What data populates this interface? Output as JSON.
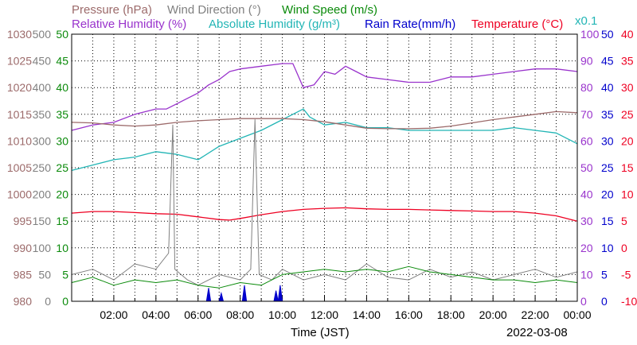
{
  "chart_data": {
    "type": "line",
    "date_label": "2022-03-08",
    "x_axis": {
      "label": "Time (JST)",
      "range_hours": [
        0,
        24
      ],
      "tick_labels": [
        "02:00",
        "04:00",
        "06:00",
        "08:00",
        "10:00",
        "12:00",
        "14:00",
        "16:00",
        "18:00",
        "20:00",
        "22:00",
        "00:00"
      ]
    },
    "grid": true,
    "colors": {
      "pressure": "#9c6a6a",
      "wind_direction": "#808080",
      "wind_speed": "#0a8a0a",
      "relative_humidity": "#9933cc",
      "absolute_humidity": "#22b5b5",
      "rain_rate": "#0000cc",
      "temperature": "#ee0022"
    },
    "legend": {
      "pressure": "Pressure (hPa)",
      "wind_direction": "Wind Direction (°)",
      "wind_speed": "Wind Speed (m/s)",
      "relative_humidity": "Relative Humidity (%)",
      "absolute_humidity": "Absolute Humidity (g/m³)",
      "rain_rate": "Rain Rate(mm/h)",
      "temperature": "Temperature (°C)",
      "scale_note": "x0.1"
    },
    "axes": {
      "pressure": {
        "range": [
          980,
          1030
        ],
        "ticks": [
          "1030",
          "1025",
          "1020",
          "1015",
          "1010",
          "1005",
          "1000",
          "995",
          "990",
          "985",
          "980"
        ]
      },
      "wind_direction": {
        "range": [
          0,
          500
        ],
        "ticks": [
          "500",
          "450",
          "400",
          "350",
          "300",
          "250",
          "200",
          "150",
          "100",
          "50",
          "0"
        ]
      },
      "wind_speed": {
        "range": [
          0,
          50
        ],
        "ticks": [
          "50",
          "45",
          "40",
          "35",
          "30",
          "25",
          "20",
          "15",
          "10",
          "5",
          "0"
        ]
      },
      "relative_humidity": {
        "range": [
          0,
          100
        ],
        "ticks": [
          "100",
          "90",
          "80",
          "70",
          "60",
          "50",
          "40",
          "30",
          "20",
          "10",
          "0"
        ]
      },
      "rain_rate": {
        "range": [
          0,
          50
        ],
        "ticks": [
          "50",
          "45",
          "40",
          "35",
          "30",
          "25",
          "20",
          "15",
          "10",
          "5",
          "0"
        ]
      },
      "temperature": {
        "range": [
          -10,
          40
        ],
        "ticks": [
          "40",
          "35",
          "30",
          "25",
          "20",
          "15",
          "10",
          "5",
          "0",
          "-5",
          "-10"
        ]
      }
    },
    "series": [
      {
        "name": "Relative Humidity (%)",
        "axis": "relative_humidity",
        "points": [
          [
            0,
            64
          ],
          [
            1,
            66
          ],
          [
            2,
            67
          ],
          [
            3,
            70
          ],
          [
            4,
            72
          ],
          [
            4.5,
            72
          ],
          [
            5,
            74
          ],
          [
            6,
            78
          ],
          [
            6.5,
            81
          ],
          [
            7,
            83
          ],
          [
            7.5,
            86
          ],
          [
            8,
            87
          ],
          [
            9,
            88
          ],
          [
            10,
            89
          ],
          [
            10.5,
            89
          ],
          [
            11,
            80
          ],
          [
            11.5,
            81
          ],
          [
            12,
            86
          ],
          [
            12.5,
            85
          ],
          [
            13,
            88
          ],
          [
            13.5,
            86
          ],
          [
            14,
            84
          ],
          [
            15,
            83
          ],
          [
            16,
            82
          ],
          [
            17,
            82
          ],
          [
            18,
            84
          ],
          [
            19,
            84
          ],
          [
            20,
            85
          ],
          [
            21,
            86
          ],
          [
            22,
            87
          ],
          [
            23,
            87
          ],
          [
            24,
            86
          ]
        ]
      },
      {
        "name": "Absolute Humidity (g/m³)",
        "axis": "relative_humidity",
        "points": [
          [
            0,
            49
          ],
          [
            1,
            51
          ],
          [
            2,
            53
          ],
          [
            3,
            54
          ],
          [
            4,
            56
          ],
          [
            5,
            55
          ],
          [
            6,
            53
          ],
          [
            7,
            58
          ],
          [
            8,
            61
          ],
          [
            9,
            64
          ],
          [
            10,
            68
          ],
          [
            10.5,
            70
          ],
          [
            11,
            72
          ],
          [
            11.3,
            69
          ],
          [
            12,
            66
          ],
          [
            13,
            67
          ],
          [
            14,
            65
          ],
          [
            15,
            65
          ],
          [
            16,
            64
          ],
          [
            17,
            64
          ],
          [
            18,
            64
          ],
          [
            19,
            64
          ],
          [
            20,
            64
          ],
          [
            21,
            65
          ],
          [
            22,
            64
          ],
          [
            23,
            63
          ],
          [
            24,
            59
          ]
        ]
      },
      {
        "name": "Pressure (hPa)",
        "axis": "pressure",
        "points": [
          [
            0,
            1013.5
          ],
          [
            1,
            1013.4
          ],
          [
            2,
            1013.0
          ],
          [
            3,
            1012.8
          ],
          [
            4,
            1013.0
          ],
          [
            5,
            1013.5
          ],
          [
            6,
            1013.8
          ],
          [
            7,
            1014.0
          ],
          [
            8,
            1014.2
          ],
          [
            9,
            1014.2
          ],
          [
            10,
            1014.2
          ],
          [
            11,
            1014.0
          ],
          [
            12,
            1013.6
          ],
          [
            13,
            1013.0
          ],
          [
            14,
            1012.4
          ],
          [
            15,
            1012.3
          ],
          [
            16,
            1012.3
          ],
          [
            17,
            1012.4
          ],
          [
            18,
            1012.8
          ],
          [
            19,
            1013.4
          ],
          [
            20,
            1014.0
          ],
          [
            21,
            1014.5
          ],
          [
            22,
            1015.0
          ],
          [
            23,
            1015.5
          ],
          [
            24,
            1015.3
          ]
        ]
      },
      {
        "name": "Temperature (°C)",
        "axis": "temperature",
        "points": [
          [
            0,
            6.5
          ],
          [
            1,
            6.8
          ],
          [
            2,
            6.8
          ],
          [
            3,
            6.6
          ],
          [
            4,
            6.4
          ],
          [
            5,
            6.3
          ],
          [
            6,
            5.8
          ],
          [
            7,
            5.3
          ],
          [
            7.5,
            5.2
          ],
          [
            8,
            5.5
          ],
          [
            9,
            6.2
          ],
          [
            10,
            6.8
          ],
          [
            11,
            7.2
          ],
          [
            12,
            7.4
          ],
          [
            13,
            7.5
          ],
          [
            14,
            7.3
          ],
          [
            15,
            7.2
          ],
          [
            16,
            7.2
          ],
          [
            17,
            7.1
          ],
          [
            18,
            7.0
          ],
          [
            19,
            6.9
          ],
          [
            20,
            6.8
          ],
          [
            21,
            6.8
          ],
          [
            22,
            6.5
          ],
          [
            23,
            6.0
          ],
          [
            24,
            5.0
          ]
        ]
      },
      {
        "name": "Wind Direction (°)",
        "axis": "wind_direction",
        "points": [
          [
            0,
            50
          ],
          [
            1,
            60
          ],
          [
            2,
            40
          ],
          [
            3,
            70
          ],
          [
            4,
            60
          ],
          [
            4.6,
            90
          ],
          [
            4.8,
            330
          ],
          [
            4.9,
            60
          ],
          [
            5.5,
            40
          ],
          [
            6,
            30
          ],
          [
            7,
            50
          ],
          [
            8,
            40
          ],
          [
            8.5,
            60
          ],
          [
            8.7,
            340
          ],
          [
            8.9,
            50
          ],
          [
            9.5,
            40
          ],
          [
            10,
            60
          ],
          [
            11,
            40
          ],
          [
            12,
            50
          ],
          [
            13,
            40
          ],
          [
            14,
            70
          ],
          [
            15,
            45
          ],
          [
            16,
            40
          ],
          [
            17,
            60
          ],
          [
            18,
            45
          ],
          [
            19,
            55
          ],
          [
            20,
            40
          ],
          [
            21,
            50
          ],
          [
            22,
            60
          ],
          [
            23,
            45
          ],
          [
            24,
            55
          ]
        ]
      },
      {
        "name": "Wind Speed (m/s)",
        "axis": "wind_speed",
        "points": [
          [
            0,
            3.5
          ],
          [
            1,
            4.5
          ],
          [
            2,
            3.0
          ],
          [
            3,
            4.0
          ],
          [
            4,
            3.5
          ],
          [
            5,
            4.0
          ],
          [
            6,
            3.0
          ],
          [
            7,
            2.5
          ],
          [
            8,
            3.5
          ],
          [
            9,
            3.0
          ],
          [
            10,
            5.0
          ],
          [
            11,
            5.5
          ],
          [
            12,
            6.0
          ],
          [
            13,
            5.5
          ],
          [
            14,
            6.0
          ],
          [
            15,
            5.5
          ],
          [
            16,
            6.5
          ],
          [
            17,
            5.5
          ],
          [
            18,
            5.0
          ],
          [
            19,
            4.5
          ],
          [
            20,
            4.0
          ],
          [
            21,
            4.0
          ],
          [
            22,
            3.5
          ],
          [
            23,
            4.0
          ],
          [
            24,
            3.5
          ]
        ]
      },
      {
        "name": "Rain Rate(mm/h)",
        "axis": "rain_rate",
        "points": [
          [
            0,
            0
          ],
          [
            6.4,
            0
          ],
          [
            6.5,
            2.5
          ],
          [
            6.6,
            0
          ],
          [
            7.0,
            0
          ],
          [
            7.1,
            1.5
          ],
          [
            7.2,
            0
          ],
          [
            8.1,
            0
          ],
          [
            8.2,
            3.0
          ],
          [
            8.3,
            0
          ],
          [
            9.6,
            0
          ],
          [
            9.7,
            2.0
          ],
          [
            9.8,
            0
          ],
          [
            9.9,
            3.0
          ],
          [
            10.0,
            0
          ],
          [
            24,
            0
          ]
        ]
      }
    ]
  }
}
